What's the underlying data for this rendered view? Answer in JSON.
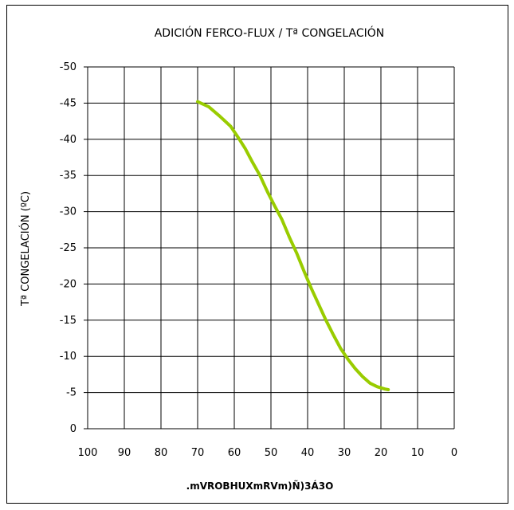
{
  "chart_data": {
    "type": "line",
    "title": "ADICIÓN FERCO-FLUX / Tª CONGELACIÓN",
    "ylabel": "Tª CONGELACIÓN (ºC)",
    "xlabel": ".mVROBHUXmRVm)Ñ)3Á3O",
    "x_reversed": true,
    "xlim": [
      0,
      100
    ],
    "ylim": [
      0,
      -50
    ],
    "y_reversed_negative": true,
    "grid": true,
    "x_ticks": [
      100,
      90,
      80,
      70,
      60,
      50,
      40,
      30,
      20,
      10,
      0
    ],
    "y_ticks": [
      -50,
      -45,
      -40,
      -35,
      -30,
      -25,
      -20,
      -15,
      -10,
      -5,
      0
    ],
    "x_tick_labels": [
      "100",
      "90",
      "80",
      "70",
      "60",
      "50",
      "40",
      "30",
      "20",
      "10",
      "0"
    ],
    "y_tick_labels": [
      "-50",
      "-45",
      "-40",
      "-35",
      "-30",
      "-25",
      "-20",
      "-15",
      "-10",
      "-5",
      "0"
    ],
    "series": [
      {
        "color": "#99cc00",
        "x": [
          70,
          67,
          64,
          61,
          59,
          57,
          55,
          53,
          51,
          49,
          47,
          45,
          43,
          41,
          39,
          37,
          35,
          33,
          31,
          29,
          27,
          25,
          23,
          21,
          19,
          18
        ],
        "y": [
          -45.2,
          -44.5,
          -43.2,
          -41.8,
          -40.3,
          -38.7,
          -36.8,
          -35.0,
          -32.8,
          -30.8,
          -28.9,
          -26.5,
          -24.3,
          -21.8,
          -19.4,
          -17.2,
          -15.0,
          -13.0,
          -11.1,
          -9.6,
          -8.3,
          -7.2,
          -6.3,
          -5.8,
          -5.5,
          -5.4
        ]
      }
    ]
  }
}
